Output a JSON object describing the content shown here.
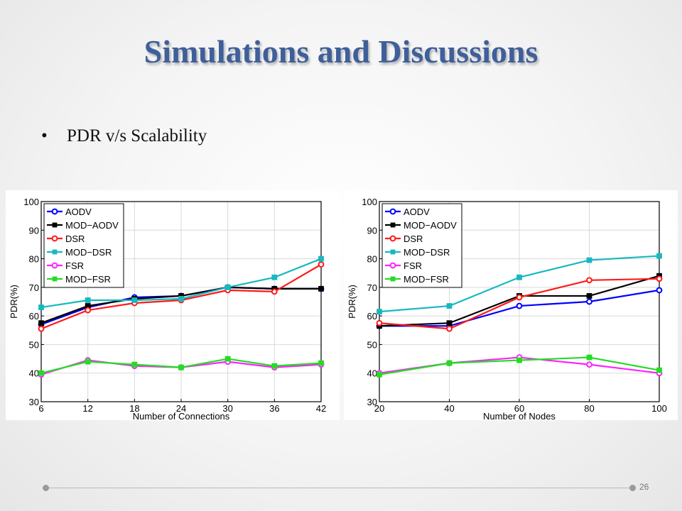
{
  "slide": {
    "title": "Simulations and Discussions",
    "bullet": "PDR v/s Scalability",
    "page_number": "26"
  },
  "chart_data": [
    {
      "type": "line",
      "xlabel": "Number of Connections",
      "ylabel": "PDR(%)",
      "x": [
        6,
        12,
        18,
        24,
        30,
        36,
        42
      ],
      "xticks": [
        "6",
        "12",
        "18",
        "24",
        "30",
        "36",
        "42"
      ],
      "ylim": [
        30,
        100
      ],
      "yticks": [
        "30",
        "40",
        "50",
        "60",
        "70",
        "80",
        "90",
        "100"
      ],
      "grid": true,
      "legend_position": "top-left",
      "series": [
        {
          "name": "AODV",
          "color": "#0000ff",
          "marker": "circle",
          "values": [
            57,
            63,
            66.5,
            67,
            70,
            69.5,
            69.5
          ]
        },
        {
          "name": "MOD−AODV",
          "color": "#000000",
          "marker": "square",
          "values": [
            57.5,
            63.5,
            66,
            67,
            70,
            69.5,
            69.5
          ]
        },
        {
          "name": "DSR",
          "color": "#ff1a1a",
          "marker": "circle",
          "values": [
            55.5,
            62,
            64.5,
            65.5,
            69,
            68.5,
            78
          ]
        },
        {
          "name": "MOD−DSR",
          "color": "#17b8c0",
          "marker": "square",
          "values": [
            63,
            65.5,
            65.5,
            66,
            70,
            73.5,
            80
          ]
        },
        {
          "name": "FSR",
          "color": "#ff22ff",
          "marker": "circle",
          "values": [
            39.5,
            44.5,
            42.5,
            42,
            44,
            42,
            43
          ]
        },
        {
          "name": "MOD−FSR",
          "color": "#22dd22",
          "marker": "square",
          "values": [
            40,
            44,
            43,
            42,
            45,
            42.5,
            43.5
          ]
        }
      ]
    },
    {
      "type": "line",
      "xlabel": "Number of Nodes",
      "ylabel": "PDR(%)",
      "x": [
        20,
        40,
        60,
        80,
        100
      ],
      "xticks": [
        "20",
        "40",
        "60",
        "80",
        "100"
      ],
      "ylim": [
        30,
        100
      ],
      "yticks": [
        "30",
        "40",
        "50",
        "60",
        "70",
        "80",
        "90",
        "100"
      ],
      "grid": true,
      "legend_position": "top-left",
      "series": [
        {
          "name": "AODV",
          "color": "#0000ff",
          "marker": "circle",
          "values": [
            56.5,
            56.5,
            63.5,
            65,
            69
          ]
        },
        {
          "name": "MOD−AODV",
          "color": "#000000",
          "marker": "square",
          "values": [
            56.5,
            57.5,
            67,
            67,
            74
          ]
        },
        {
          "name": "DSR",
          "color": "#ff1a1a",
          "marker": "circle",
          "values": [
            57.5,
            55.5,
            66.5,
            72.5,
            73
          ]
        },
        {
          "name": "MOD−DSR",
          "color": "#17b8c0",
          "marker": "square",
          "values": [
            61.5,
            63.5,
            73.5,
            79.5,
            81
          ]
        },
        {
          "name": "FSR",
          "color": "#ff22ff",
          "marker": "circle",
          "values": [
            40,
            43.5,
            45.5,
            43,
            40
          ]
        },
        {
          "name": "MOD−FSR",
          "color": "#22dd22",
          "marker": "square",
          "values": [
            39.5,
            43.5,
            44.5,
            45.5,
            41
          ]
        }
      ]
    }
  ]
}
